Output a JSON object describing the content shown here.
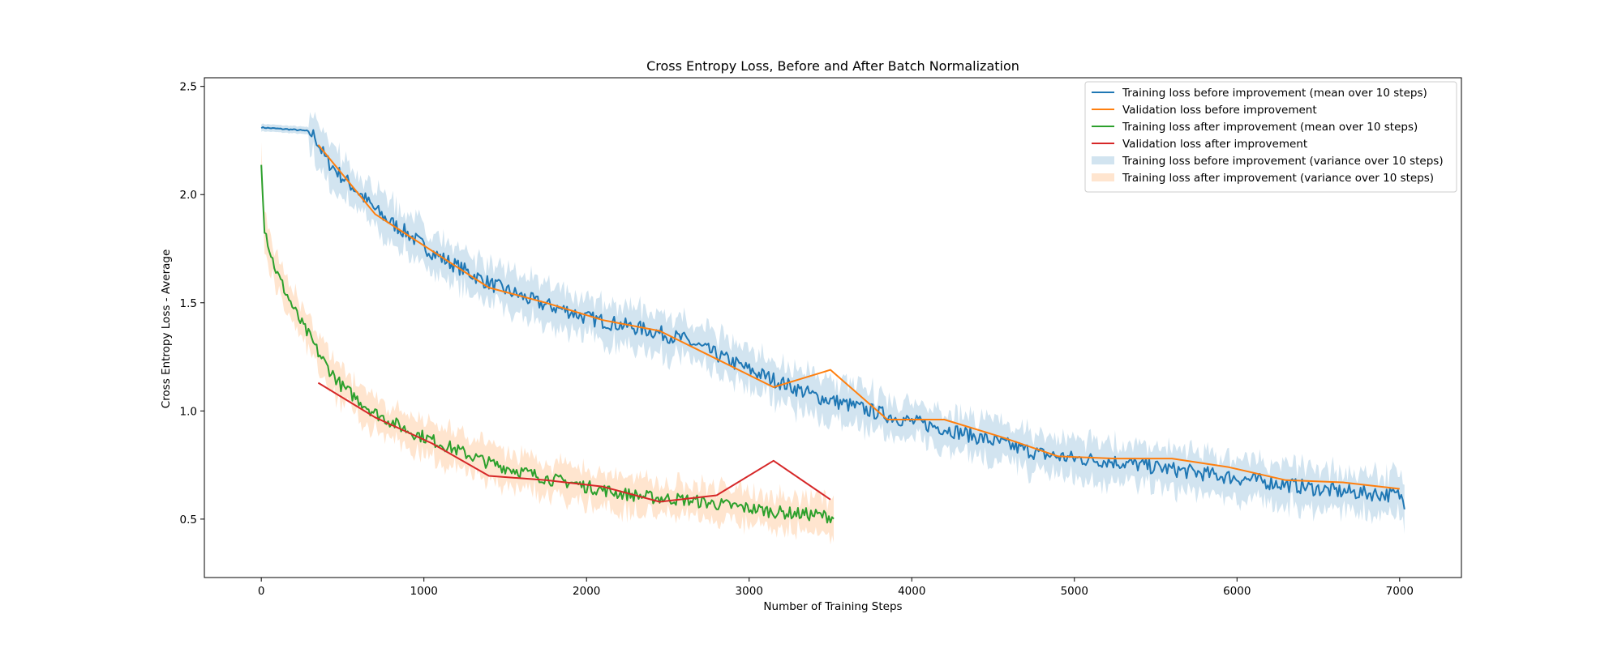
{
  "chart_data": {
    "type": "line",
    "title": "Cross Entropy Loss, Before and After Batch Normalization",
    "xlabel": "Number of Training Steps",
    "ylabel": "Cross Entropy Loss - Average",
    "xlim": [
      -350,
      7380
    ],
    "ylim": [
      0.23,
      2.54
    ],
    "xticks": [
      0,
      1000,
      2000,
      3000,
      4000,
      5000,
      6000,
      7000
    ],
    "xtick_labels": [
      "0",
      "1000",
      "2000",
      "3000",
      "4000",
      "5000",
      "6000",
      "7000"
    ],
    "yticks": [
      0.5,
      1.0,
      1.5,
      2.0,
      2.5
    ],
    "ytick_labels": [
      "0.5",
      "1.0",
      "1.5",
      "2.0",
      "2.5"
    ],
    "grid": false,
    "legend_position": "top-right",
    "series": [
      {
        "name": "Training loss before improvement (mean over 10 steps)",
        "kind": "line",
        "color": "#1f77b4",
        "points": [
          [
            0,
            2.31
          ],
          [
            100,
            2.305
          ],
          [
            200,
            2.3
          ],
          [
            280,
            2.295
          ],
          [
            330,
            2.27
          ],
          [
            360,
            2.22
          ],
          [
            400,
            2.16
          ],
          [
            500,
            2.08
          ],
          [
            600,
            2.01
          ],
          [
            700,
            1.93
          ],
          [
            800,
            1.87
          ],
          [
            900,
            1.82
          ],
          [
            1000,
            1.76
          ],
          [
            1100,
            1.71
          ],
          [
            1200,
            1.67
          ],
          [
            1300,
            1.63
          ],
          [
            1400,
            1.59
          ],
          [
            1500,
            1.56
          ],
          [
            1600,
            1.53
          ],
          [
            1700,
            1.5
          ],
          [
            1800,
            1.48
          ],
          [
            1900,
            1.46
          ],
          [
            2000,
            1.43
          ],
          [
            2200,
            1.4
          ],
          [
            2400,
            1.37
          ],
          [
            2600,
            1.33
          ],
          [
            2800,
            1.26
          ],
          [
            3000,
            1.19
          ],
          [
            3200,
            1.13
          ],
          [
            3400,
            1.07
          ],
          [
            3600,
            1.03
          ],
          [
            3800,
            0.99
          ],
          [
            4000,
            0.95
          ],
          [
            4200,
            0.92
          ],
          [
            4400,
            0.88
          ],
          [
            4600,
            0.84
          ],
          [
            4800,
            0.8
          ],
          [
            5000,
            0.78
          ],
          [
            5200,
            0.77
          ],
          [
            5400,
            0.75
          ],
          [
            5600,
            0.73
          ],
          [
            5800,
            0.71
          ],
          [
            6000,
            0.69
          ],
          [
            6200,
            0.67
          ],
          [
            6400,
            0.65
          ],
          [
            6600,
            0.63
          ],
          [
            6800,
            0.62
          ],
          [
            7000,
            0.61
          ],
          [
            7030,
            0.58
          ]
        ],
        "noise": 0.035
      },
      {
        "name": "Validation loss before improvement",
        "kind": "line",
        "color": "#ff7f0e",
        "points": [
          [
            350,
            2.23
          ],
          [
            700,
            1.91
          ],
          [
            1050,
            1.74
          ],
          [
            1400,
            1.57
          ],
          [
            1750,
            1.5
          ],
          [
            2100,
            1.42
          ],
          [
            2450,
            1.37
          ],
          [
            2800,
            1.24
          ],
          [
            3150,
            1.11
          ],
          [
            3500,
            1.19
          ],
          [
            3850,
            0.96
          ],
          [
            4200,
            0.96
          ],
          [
            4550,
            0.88
          ],
          [
            4900,
            0.79
          ],
          [
            5250,
            0.78
          ],
          [
            5600,
            0.78
          ],
          [
            5950,
            0.74
          ],
          [
            6300,
            0.68
          ],
          [
            6650,
            0.67
          ],
          [
            7000,
            0.64
          ]
        ]
      },
      {
        "name": "Training loss after improvement (mean over 10 steps)",
        "kind": "line",
        "color": "#2ca02c",
        "points": [
          [
            0,
            2.16
          ],
          [
            10,
            2.0
          ],
          [
            20,
            1.85
          ],
          [
            60,
            1.72
          ],
          [
            100,
            1.63
          ],
          [
            150,
            1.55
          ],
          [
            200,
            1.47
          ],
          [
            250,
            1.4
          ],
          [
            300,
            1.34
          ],
          [
            350,
            1.27
          ],
          [
            400,
            1.21
          ],
          [
            450,
            1.16
          ],
          [
            500,
            1.11
          ],
          [
            600,
            1.05
          ],
          [
            700,
            0.99
          ],
          [
            800,
            0.95
          ],
          [
            900,
            0.91
          ],
          [
            1000,
            0.88
          ],
          [
            1100,
            0.85
          ],
          [
            1200,
            0.82
          ],
          [
            1300,
            0.79
          ],
          [
            1400,
            0.76
          ],
          [
            1500,
            0.74
          ],
          [
            1600,
            0.72
          ],
          [
            1700,
            0.7
          ],
          [
            1800,
            0.68
          ],
          [
            1900,
            0.67
          ],
          [
            2000,
            0.65
          ],
          [
            2200,
            0.62
          ],
          [
            2400,
            0.6
          ],
          [
            2600,
            0.59
          ],
          [
            2800,
            0.57
          ],
          [
            3000,
            0.55
          ],
          [
            3200,
            0.53
          ],
          [
            3400,
            0.52
          ],
          [
            3520,
            0.51
          ]
        ],
        "noise": 0.03
      },
      {
        "name": "Validation loss after improvement",
        "kind": "line",
        "color": "#d62728",
        "points": [
          [
            350,
            1.13
          ],
          [
            700,
            0.97
          ],
          [
            1050,
            0.85
          ],
          [
            1400,
            0.7
          ],
          [
            1750,
            0.68
          ],
          [
            2100,
            0.65
          ],
          [
            2450,
            0.58
          ],
          [
            2800,
            0.61
          ],
          [
            3150,
            0.77
          ],
          [
            3500,
            0.59
          ]
        ]
      },
      {
        "name": "Training loss before improvement (variance over 10 steps)",
        "kind": "band",
        "color": "#1f77b4",
        "opacity": 0.2,
        "of_series": 0,
        "half_width": 0.085
      },
      {
        "name": "Training loss after improvement (variance over 10 steps)",
        "kind": "band",
        "color": "#ff7f0e",
        "opacity": 0.2,
        "of_series": 2,
        "half_width": 0.075
      }
    ]
  }
}
